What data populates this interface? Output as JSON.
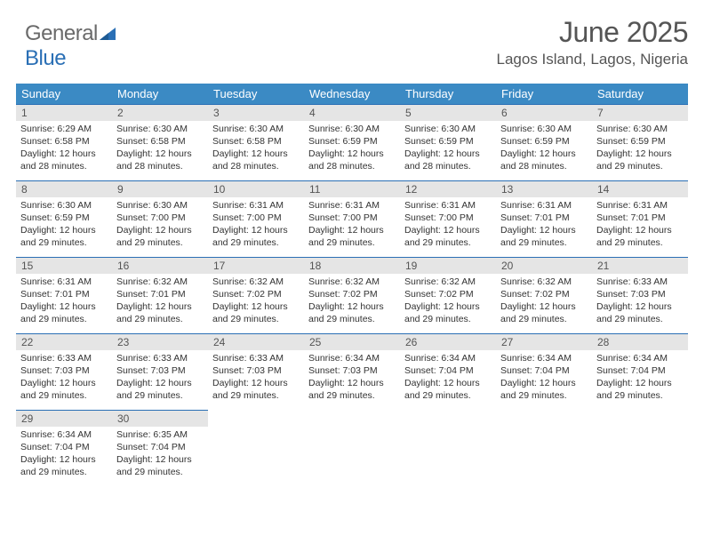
{
  "logo": {
    "word1": "General",
    "word2": "Blue"
  },
  "title": "June 2025",
  "subtitle": "Lagos Island, Lagos, Nigeria",
  "colors": {
    "header_bg": "#3b8ac4",
    "header_text": "#ffffff",
    "row_border": "#2a6fb5",
    "daynum_bg": "#e5e5e5",
    "text": "#333333",
    "title_text": "#555555",
    "logo_gray": "#6a6a6a",
    "logo_blue": "#2a6fb5"
  },
  "weekdays": [
    "Sunday",
    "Monday",
    "Tuesday",
    "Wednesday",
    "Thursday",
    "Friday",
    "Saturday"
  ],
  "labels": {
    "sunrise": "Sunrise:",
    "sunset": "Sunset:",
    "daylight": "Daylight:"
  },
  "weeks": [
    [
      {
        "n": 1,
        "sr": "6:29 AM",
        "ss": "6:58 PM",
        "dl": "12 hours and 28 minutes."
      },
      {
        "n": 2,
        "sr": "6:30 AM",
        "ss": "6:58 PM",
        "dl": "12 hours and 28 minutes."
      },
      {
        "n": 3,
        "sr": "6:30 AM",
        "ss": "6:58 PM",
        "dl": "12 hours and 28 minutes."
      },
      {
        "n": 4,
        "sr": "6:30 AM",
        "ss": "6:59 PM",
        "dl": "12 hours and 28 minutes."
      },
      {
        "n": 5,
        "sr": "6:30 AM",
        "ss": "6:59 PM",
        "dl": "12 hours and 28 minutes."
      },
      {
        "n": 6,
        "sr": "6:30 AM",
        "ss": "6:59 PM",
        "dl": "12 hours and 28 minutes."
      },
      {
        "n": 7,
        "sr": "6:30 AM",
        "ss": "6:59 PM",
        "dl": "12 hours and 29 minutes."
      }
    ],
    [
      {
        "n": 8,
        "sr": "6:30 AM",
        "ss": "6:59 PM",
        "dl": "12 hours and 29 minutes."
      },
      {
        "n": 9,
        "sr": "6:30 AM",
        "ss": "7:00 PM",
        "dl": "12 hours and 29 minutes."
      },
      {
        "n": 10,
        "sr": "6:31 AM",
        "ss": "7:00 PM",
        "dl": "12 hours and 29 minutes."
      },
      {
        "n": 11,
        "sr": "6:31 AM",
        "ss": "7:00 PM",
        "dl": "12 hours and 29 minutes."
      },
      {
        "n": 12,
        "sr": "6:31 AM",
        "ss": "7:00 PM",
        "dl": "12 hours and 29 minutes."
      },
      {
        "n": 13,
        "sr": "6:31 AM",
        "ss": "7:01 PM",
        "dl": "12 hours and 29 minutes."
      },
      {
        "n": 14,
        "sr": "6:31 AM",
        "ss": "7:01 PM",
        "dl": "12 hours and 29 minutes."
      }
    ],
    [
      {
        "n": 15,
        "sr": "6:31 AM",
        "ss": "7:01 PM",
        "dl": "12 hours and 29 minutes."
      },
      {
        "n": 16,
        "sr": "6:32 AM",
        "ss": "7:01 PM",
        "dl": "12 hours and 29 minutes."
      },
      {
        "n": 17,
        "sr": "6:32 AM",
        "ss": "7:02 PM",
        "dl": "12 hours and 29 minutes."
      },
      {
        "n": 18,
        "sr": "6:32 AM",
        "ss": "7:02 PM",
        "dl": "12 hours and 29 minutes."
      },
      {
        "n": 19,
        "sr": "6:32 AM",
        "ss": "7:02 PM",
        "dl": "12 hours and 29 minutes."
      },
      {
        "n": 20,
        "sr": "6:32 AM",
        "ss": "7:02 PM",
        "dl": "12 hours and 29 minutes."
      },
      {
        "n": 21,
        "sr": "6:33 AM",
        "ss": "7:03 PM",
        "dl": "12 hours and 29 minutes."
      }
    ],
    [
      {
        "n": 22,
        "sr": "6:33 AM",
        "ss": "7:03 PM",
        "dl": "12 hours and 29 minutes."
      },
      {
        "n": 23,
        "sr": "6:33 AM",
        "ss": "7:03 PM",
        "dl": "12 hours and 29 minutes."
      },
      {
        "n": 24,
        "sr": "6:33 AM",
        "ss": "7:03 PM",
        "dl": "12 hours and 29 minutes."
      },
      {
        "n": 25,
        "sr": "6:34 AM",
        "ss": "7:03 PM",
        "dl": "12 hours and 29 minutes."
      },
      {
        "n": 26,
        "sr": "6:34 AM",
        "ss": "7:04 PM",
        "dl": "12 hours and 29 minutes."
      },
      {
        "n": 27,
        "sr": "6:34 AM",
        "ss": "7:04 PM",
        "dl": "12 hours and 29 minutes."
      },
      {
        "n": 28,
        "sr": "6:34 AM",
        "ss": "7:04 PM",
        "dl": "12 hours and 29 minutes."
      }
    ],
    [
      {
        "n": 29,
        "sr": "6:34 AM",
        "ss": "7:04 PM",
        "dl": "12 hours and 29 minutes."
      },
      {
        "n": 30,
        "sr": "6:35 AM",
        "ss": "7:04 PM",
        "dl": "12 hours and 29 minutes."
      },
      null,
      null,
      null,
      null,
      null
    ]
  ]
}
